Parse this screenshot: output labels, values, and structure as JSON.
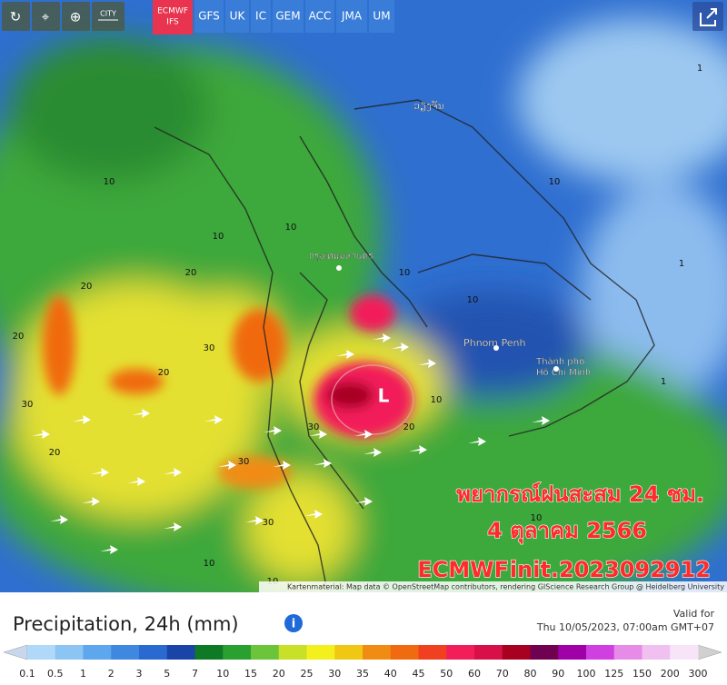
{
  "toolbar": {
    "city": "CITY",
    "active_model": {
      "name": "ECMWF",
      "sub": "IFS"
    },
    "models": [
      "GFS",
      "UK",
      "IC",
      "GEM",
      "ACC",
      "JMA",
      "UM"
    ]
  },
  "map": {
    "places": [
      "ວຽງຈັນ",
      "กรุงเทพมหานคร",
      "Phnom Penh",
      "Thành phố",
      "Hồ Chí Minh"
    ],
    "low_label": "L",
    "contour_labels": [
      10,
      10,
      10,
      10,
      1,
      1,
      1,
      10,
      20,
      20,
      20,
      30,
      30,
      30,
      30,
      20,
      20,
      10,
      10,
      10,
      30,
      20,
      10,
      10
    ],
    "overlay": {
      "line1": "พยากรณ์ฝนสะสม 24 ชม.",
      "line2": "4 ตุลาคม 2566",
      "model": "ECMWF",
      "init": "init.2023092912"
    },
    "attribution": "Kartenmaterial: Map data © OpenStreetMap contributors, rendering GIScience Research Group @ Heidelberg University"
  },
  "legend": {
    "title": "Precipitation, 24h (mm)",
    "valid_label": "Valid for",
    "valid_time": "Thu 10/05/2023, 07:00am GMT+07",
    "scale_labels": [
      0.1,
      0.5,
      1,
      2,
      3,
      5,
      7,
      10,
      15,
      20,
      25,
      30,
      35,
      40,
      45,
      50,
      60,
      70,
      80,
      90,
      100,
      125,
      150,
      200,
      300
    ],
    "low_color": "#c8d8ec",
    "high_color": "#d0d0d0",
    "scale_colors": [
      "#b0d8f8",
      "#8cc4f4",
      "#5ea6ee",
      "#3e88e0",
      "#2a6ad0",
      "#1a44a8",
      "#0f7a26",
      "#2aa030",
      "#6cc43a",
      "#c8e028",
      "#f4f01e",
      "#f0c814",
      "#f08c14",
      "#f06a10",
      "#f04020",
      "#f21e5a",
      "#d8104a",
      "#a80020",
      "#700050",
      "#a000a8",
      "#d040e0",
      "#e68ce8",
      "#f0c0f0",
      "#f8e4f8"
    ]
  }
}
